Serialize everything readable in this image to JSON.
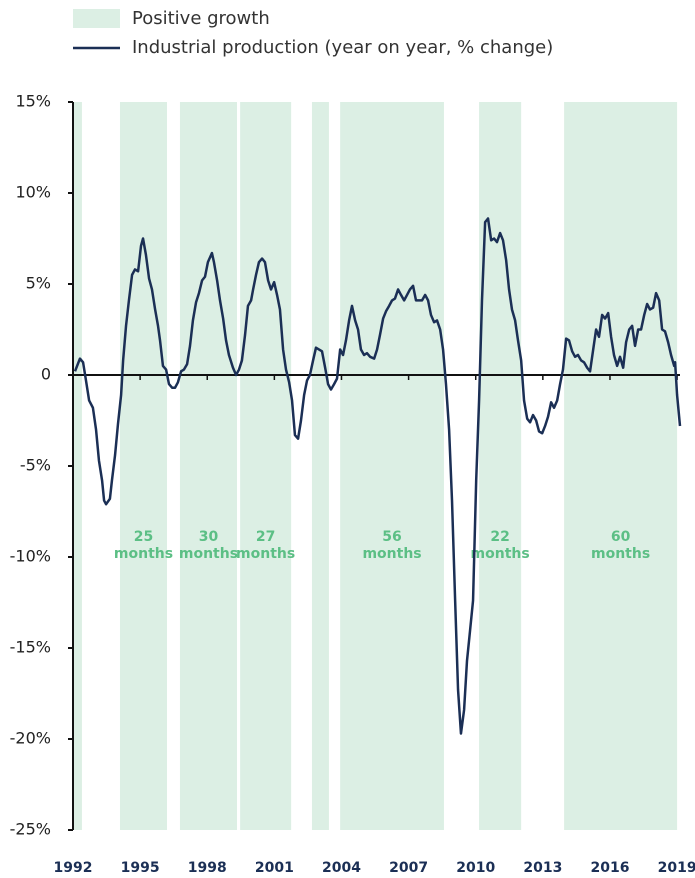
{
  "chart_data": {
    "type": "line",
    "legend": "top-left",
    "bands": {
      "name": "Positive growth",
      "color": "#dcefe4",
      "label_color": "#5cbf85",
      "ranges": [
        {
          "start": 1992,
          "end": 1992.4
        },
        {
          "start": 1994.1,
          "end": 1996.2,
          "label": [
            "25",
            "months"
          ]
        },
        {
          "start": 1996.78,
          "end": 1999.33,
          "label": [
            "30",
            "months"
          ]
        },
        {
          "start": 1999.47,
          "end": 2001.75,
          "label": [
            "27",
            "months"
          ]
        },
        {
          "start": 2002.68,
          "end": 2003.44
        },
        {
          "start": 2003.94,
          "end": 2008.58,
          "label": [
            "56",
            "months"
          ]
        },
        {
          "start": 2010.15,
          "end": 2012.03,
          "label": [
            "22",
            "months"
          ]
        },
        {
          "start": 2013.95,
          "end": 2019.0,
          "label": [
            "60",
            "months"
          ]
        }
      ]
    },
    "x": [
      1992.09,
      1992.31,
      1992.45,
      1992.58,
      1992.72,
      1992.89,
      1993.03,
      1993.16,
      1993.3,
      1993.39,
      1993.48,
      1993.65,
      1993.74,
      1993.88,
      1994.01,
      1994.15,
      1994.24,
      1994.37,
      1994.5,
      1994.64,
      1994.77,
      1994.91,
      1995.04,
      1995.13,
      1995.26,
      1995.4,
      1995.53,
      1995.67,
      1995.8,
      1995.89,
      1996.02,
      1996.16,
      1996.29,
      1996.43,
      1996.56,
      1996.69,
      1996.83,
      1996.96,
      1997.1,
      1997.23,
      1997.36,
      1997.5,
      1997.63,
      1997.77,
      1997.9,
      1998.03,
      1998.21,
      1998.3,
      1998.44,
      1998.57,
      1998.71,
      1998.84,
      1998.97,
      1999.15,
      1999.29,
      1999.42,
      1999.55,
      1999.69,
      1999.82,
      1999.96,
      2000.05,
      2000.18,
      2000.31,
      2000.45,
      2000.58,
      2000.72,
      2000.85,
      2000.99,
      2001.12,
      2001.25,
      2001.39,
      2001.52,
      2001.66,
      2001.79,
      2001.92,
      2002.06,
      2002.19,
      2002.33,
      2002.46,
      2002.59,
      2002.73,
      2002.86,
      2003.0,
      2003.13,
      2003.27,
      2003.4,
      2003.53,
      2003.67,
      2003.8,
      2003.94,
      2004.07,
      2004.2,
      2004.34,
      2004.47,
      2004.61,
      2004.74,
      2004.87,
      2005.01,
      2005.14,
      2005.28,
      2005.46,
      2005.59,
      2005.72,
      2005.86,
      2005.99,
      2006.13,
      2006.26,
      2006.39,
      2006.53,
      2006.66,
      2006.8,
      2006.93,
      2007.06,
      2007.2,
      2007.33,
      2007.47,
      2007.6,
      2007.74,
      2007.87,
      2008.0,
      2008.14,
      2008.27,
      2008.41,
      2008.54,
      2008.67,
      2008.81,
      2008.94,
      2009.08,
      2009.21,
      2009.34,
      2009.48,
      2009.61,
      2009.75,
      2009.88,
      2010.02,
      2010.15,
      2010.28,
      2010.42,
      2010.55,
      2010.69,
      2010.82,
      2010.95,
      2011.09,
      2011.22,
      2011.36,
      2011.49,
      2011.62,
      2011.76,
      2011.89,
      2012.03,
      2012.16,
      2012.3,
      2012.43,
      2012.56,
      2012.7,
      2012.83,
      2012.97,
      2013.1,
      2013.23,
      2013.37,
      2013.5,
      2013.64,
      2013.77,
      2013.9,
      2014.04,
      2014.17,
      2014.31,
      2014.44,
      2014.57,
      2014.71,
      2014.84,
      2014.98,
      2015.11,
      2015.25,
      2015.38,
      2015.51,
      2015.65,
      2015.78,
      2015.92,
      2016.05,
      2016.18,
      2016.32,
      2016.45,
      2016.59,
      2016.72,
      2016.86,
      2016.99,
      2017.12,
      2017.26,
      2017.39,
      2017.53,
      2017.66,
      2017.79,
      2017.93,
      2018.06,
      2018.2,
      2018.33,
      2018.46,
      2018.6,
      2018.73,
      2018.87,
      2018.91,
      2019.0,
      2019.13
    ],
    "series": [
      {
        "name": "Industrial production (year on year, % change)",
        "color": "#1b2f55",
        "values": [
          0.2,
          0.9,
          0.7,
          -0.3,
          -1.4,
          -1.8,
          -3.0,
          -4.7,
          -5.8,
          -6.9,
          -7.1,
          -6.8,
          -5.8,
          -4.4,
          -2.7,
          -1.1,
          0.8,
          2.7,
          4.1,
          5.5,
          5.8,
          5.7,
          7.1,
          7.5,
          6.6,
          5.3,
          4.7,
          3.6,
          2.7,
          1.9,
          0.5,
          0.3,
          -0.5,
          -0.7,
          -0.7,
          -0.4,
          0.2,
          0.3,
          0.6,
          1.6,
          3.0,
          4.0,
          4.5,
          5.2,
          5.4,
          6.2,
          6.7,
          6.2,
          5.2,
          4.1,
          3.1,
          1.9,
          1.1,
          0.4,
          0,
          0.3,
          0.8,
          2.2,
          3.8,
          4.1,
          4.7,
          5.5,
          6.2,
          6.4,
          6.2,
          5.2,
          4.7,
          5.1,
          4.4,
          3.6,
          1.4,
          0.3,
          -0.4,
          -1.4,
          -3.3,
          -3.5,
          -2.5,
          -1.1,
          -0.3,
          0,
          0.8,
          1.5,
          1.4,
          1.3,
          0.4,
          -0.5,
          -0.8,
          -0.5,
          -0.2,
          1.4,
          1.1,
          1.9,
          3.0,
          3.8,
          3.0,
          2.5,
          1.4,
          1.1,
          1.2,
          1.0,
          0.9,
          1.4,
          2.2,
          3.1,
          3.5,
          3.8,
          4.1,
          4.2,
          4.7,
          4.4,
          4.1,
          4.4,
          4.7,
          4.9,
          4.1,
          4.1,
          4.1,
          4.4,
          4.1,
          3.3,
          2.9,
          3.0,
          2.5,
          1.4,
          -0.5,
          -3.0,
          -6.9,
          -12.4,
          -17.3,
          -19.7,
          -18.4,
          -15.7,
          -14.0,
          -12.4,
          -5.8,
          -1.4,
          4.1,
          8.4,
          8.6,
          7.4,
          7.5,
          7.3,
          7.8,
          7.4,
          6.3,
          4.7,
          3.6,
          3.0,
          1.9,
          0.8,
          -1.4,
          -2.4,
          -2.6,
          -2.2,
          -2.5,
          -3.1,
          -3.2,
          -2.8,
          -2.3,
          -1.5,
          -1.8,
          -1.4,
          -0.5,
          0.3,
          2.0,
          1.9,
          1.3,
          1.0,
          1.1,
          0.8,
          0.7,
          0.4,
          0.2,
          1.4,
          2.5,
          2.1,
          3.3,
          3.1,
          3.4,
          2.1,
          1.1,
          0.5,
          1.0,
          0.4,
          1.8,
          2.5,
          2.7,
          1.6,
          2.5,
          2.5,
          3.3,
          3.9,
          3.6,
          3.7,
          4.5,
          4.1,
          2.5,
          2.4,
          1.8,
          1.1,
          0.5,
          0.7,
          -1.1,
          -2.8
        ]
      }
    ],
    "xlim": [
      1992,
      2019.13
    ],
    "xticks": [
      1992,
      1995,
      1998,
      2001,
      2004,
      2007,
      2010,
      2013,
      2016,
      2019
    ],
    "ylim": [
      -25,
      15
    ],
    "yticks": [
      {
        "value": 15,
        "label": "15%"
      },
      {
        "value": 10,
        "label": "10%"
      },
      {
        "value": 5,
        "label": "5%"
      },
      0,
      {
        "value": -5,
        "label": "-5%"
      },
      {
        "value": -10,
        "label": "-10%"
      },
      {
        "value": -15,
        "label": "-15%"
      },
      {
        "value": -20,
        "label": "-20%"
      },
      {
        "value": -25,
        "label": "-25%"
      }
    ]
  }
}
